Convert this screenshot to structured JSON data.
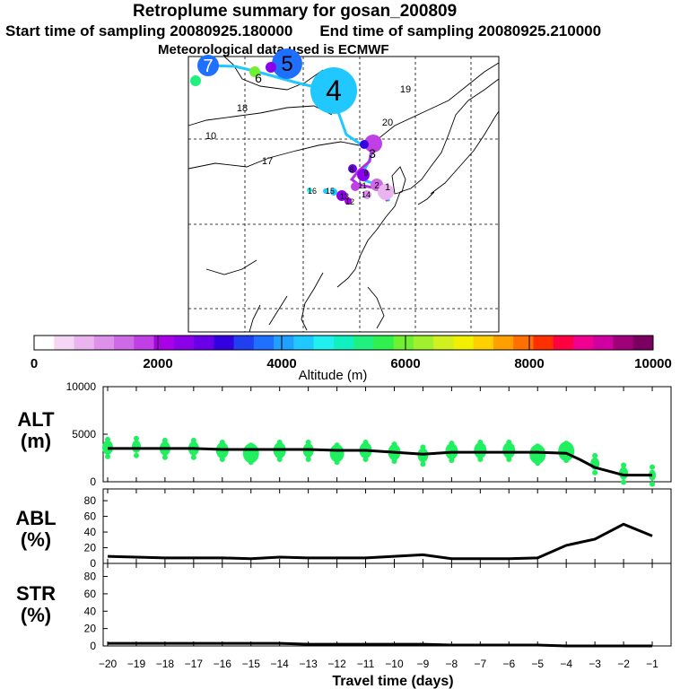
{
  "header": {
    "title": "Retroplume summary for gosan_200809",
    "start_label": "Start time of sampling 20080925.180000",
    "end_label": "End time of sampling 20080925.210000",
    "met_label": "Meteorological data used is ECMWF"
  },
  "colorbar": {
    "ticks": [
      "0",
      "2000",
      "4000",
      "6000",
      "8000",
      "10000"
    ],
    "label": "Altitude (m)",
    "colors": [
      "#ffffff",
      "#f5d6f5",
      "#eab5ef",
      "#dd91ea",
      "#cf6ae6",
      "#c040e6",
      "#a900e8",
      "#8a00e8",
      "#6a00e8",
      "#3300e0",
      "#2040f0",
      "#2070ff",
      "#20a0ff",
      "#20c8ff",
      "#20f0f0",
      "#10f0c0",
      "#20f080",
      "#30f050",
      "#70f030",
      "#a0f030",
      "#d0f020",
      "#f0f000",
      "#ffd000",
      "#ffa000",
      "#ff7000",
      "#ff3000",
      "#ff0040",
      "#f00090",
      "#d000a0",
      "#a0007a",
      "#7a0060"
    ]
  },
  "map": {
    "plume_labels": [
      {
        "text": "7",
        "color": "#ffffff"
      },
      {
        "text": "5",
        "color": "#000000"
      },
      {
        "text": "4",
        "color": "#000000"
      },
      {
        "text": "6",
        "color": "#000000"
      },
      {
        "text": "3",
        "color": "#000000"
      },
      {
        "text": "19",
        "color": "#000000"
      },
      {
        "text": "20",
        "color": "#000000"
      },
      {
        "text": "10",
        "color": "#000000"
      },
      {
        "text": "17",
        "color": "#000000"
      },
      {
        "text": "18",
        "color": "#000000"
      },
      {
        "text": "15",
        "color": "#000000"
      },
      {
        "text": "16",
        "color": "#000000"
      },
      {
        "text": "13",
        "color": "#000000"
      },
      {
        "text": "14",
        "color": "#000000"
      },
      {
        "text": "12",
        "color": "#000000"
      },
      {
        "text": "11",
        "color": "#000000"
      },
      {
        "text": "8",
        "color": "#000000"
      },
      {
        "text": "9",
        "color": "#000000"
      },
      {
        "text": "2",
        "color": "#000000"
      },
      {
        "text": "1",
        "color": "#000000"
      }
    ]
  },
  "chart_data": [
    {
      "type": "scatter",
      "title": "ALT (m)",
      "ylabel": "ALT (m)",
      "xlim": [
        -20,
        -0.5
      ],
      "ylim": [
        0,
        10000
      ],
      "yticks": [
        "10000",
        "5000",
        "0"
      ],
      "mean_line": {
        "x": [
          -20,
          -19,
          -18,
          -17,
          -16,
          -15,
          -14,
          -13,
          -12,
          -11,
          -10,
          -9,
          -8,
          -7,
          -6,
          -5,
          -4,
          -3.5,
          -3,
          -2.5,
          -2,
          -1
        ],
        "y": [
          3500,
          3500,
          3500,
          3500,
          3400,
          3400,
          3400,
          3400,
          3300,
          3300,
          3100,
          2900,
          3100,
          3100,
          3100,
          3100,
          3000,
          2300,
          1500,
          1100,
          700,
          700
        ]
      },
      "plume_points": [
        {
          "x": -20,
          "y": 3600
        },
        {
          "x": -19,
          "y": 3700
        },
        {
          "x": -18,
          "y": 3500
        },
        {
          "x": -17,
          "y": 3500
        },
        {
          "x": -16,
          "y": 3300
        },
        {
          "x": -15,
          "y": 3000
        },
        {
          "x": -14,
          "y": 3300
        },
        {
          "x": -13,
          "y": 3300
        },
        {
          "x": -12,
          "y": 3000
        },
        {
          "x": -11,
          "y": 3300
        },
        {
          "x": -10,
          "y": 3100
        },
        {
          "x": -9,
          "y": 2800
        },
        {
          "x": -8,
          "y": 3200
        },
        {
          "x": -7,
          "y": 3300
        },
        {
          "x": -6,
          "y": 3300
        },
        {
          "x": -5,
          "y": 2900
        },
        {
          "x": -4,
          "y": 3200
        },
        {
          "x": -3,
          "y": 1900
        },
        {
          "x": -2,
          "y": 900
        },
        {
          "x": -1,
          "y": 700
        }
      ],
      "point_color": "#20f060"
    },
    {
      "type": "line",
      "title": "ABL (%)",
      "ylabel": "ABL (%)",
      "xlim": [
        -20,
        -0.5
      ],
      "ylim": [
        0,
        95
      ],
      "yticks": [
        "80",
        "60",
        "40",
        "20",
        "0"
      ],
      "x": [
        -20,
        -19,
        -18,
        -17,
        -16,
        -15,
        -14,
        -13,
        -12,
        -11,
        -10,
        -9,
        -8,
        -7,
        -6,
        -5,
        -4,
        -3,
        -2,
        -1
      ],
      "y": [
        9,
        8,
        7,
        7,
        7,
        6,
        8,
        7,
        7,
        7,
        9,
        11,
        6,
        6,
        6,
        7,
        23,
        31,
        50,
        35
      ]
    },
    {
      "type": "line",
      "title": "STR (%)",
      "ylabel": "STR (%)",
      "xlim": [
        -20,
        -0.5
      ],
      "ylim": [
        0,
        95
      ],
      "yticks": [
        "80",
        "60",
        "40",
        "20",
        "0"
      ],
      "xlabel": "Travel time (days)",
      "xticks": [
        "-20",
        "-19",
        "-18",
        "-17",
        "-16",
        "-15",
        "-14",
        "-13",
        "-12",
        "-11",
        "-10",
        "-9",
        "-8",
        "-7",
        "-6",
        "-5",
        "-4",
        "-3",
        "-2",
        "-1"
      ],
      "x": [
        -20,
        -19,
        -18,
        -17,
        -16,
        -15,
        -14,
        -13,
        -12,
        -11,
        -10,
        -9,
        -8,
        -7,
        -6,
        -5,
        -4,
        -3,
        -2,
        -1
      ],
      "y": [
        3,
        3,
        3,
        3,
        3,
        3,
        3,
        2,
        2,
        2,
        2,
        2,
        1,
        1,
        1,
        1,
        0,
        0,
        0,
        0
      ]
    }
  ]
}
